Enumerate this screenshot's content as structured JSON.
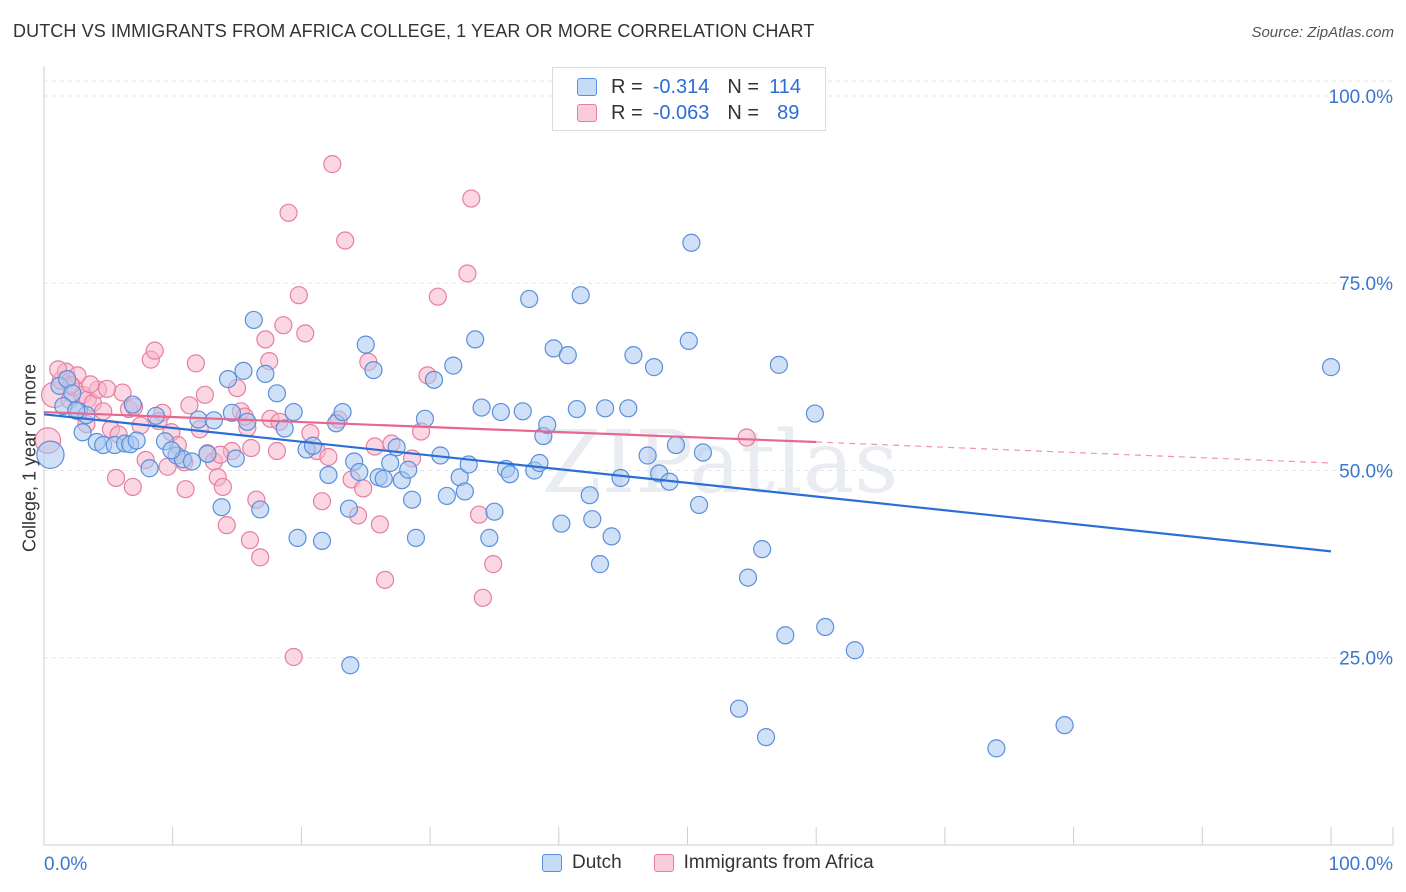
{
  "title": "DUTCH VS IMMIGRANTS FROM AFRICA COLLEGE, 1 YEAR OR MORE CORRELATION CHART",
  "source": "Source: ZipAtlas.com",
  "watermark": "ZIPatlas",
  "legend_top": [
    {
      "r_label": "R =",
      "r_value": "-0.314",
      "n_label": "N =",
      "n_value": "114"
    },
    {
      "r_label": "R =",
      "r_value": "-0.063",
      "n_label": "N =",
      "n_value": "89"
    }
  ],
  "legend_bottom": [
    "Dutch",
    "Immigrants from Africa"
  ],
  "colors": {
    "dutch_fill": "#a9c8f0",
    "dutch_stroke": "#5a8fdc",
    "dutch_line": "#2a6fd6",
    "africa_fill": "#f5b6cb",
    "africa_stroke": "#e77fa1",
    "africa_line": "#e8678f",
    "tick_label": "#3b76d0",
    "grid": "#e6e6e6"
  },
  "chart_data": {
    "type": "scatter",
    "title": "DUTCH VS IMMIGRANTS FROM AFRICA COLLEGE, 1 YEAR OR MORE CORRELATION CHART",
    "xlabel": "",
    "ylabel": "College, 1 year or more",
    "xlim": [
      0,
      100
    ],
    "ylim": [
      0,
      104
    ],
    "x_tick_labels": [
      "0.0%",
      "100.0%"
    ],
    "y_ticks": [
      25,
      50,
      75,
      100
    ],
    "y_tick_labels": [
      "25.0%",
      "50.0%",
      "75.0%",
      "100.0%"
    ],
    "grid": true,
    "legend_position": "top-center",
    "series": [
      {
        "name": "Dutch",
        "r": -0.314,
        "n": 114,
        "trend": {
          "x": [
            0,
            100
          ],
          "y": [
            57.5,
            39.2
          ],
          "dashed_from": null
        },
        "points": [
          [
            0.5,
            52.1,
            1.6
          ],
          [
            1.2,
            61.3,
            1
          ],
          [
            1.8,
            62.2,
            1
          ],
          [
            2.2,
            60.3,
            1
          ],
          [
            2.7,
            57.9,
            1
          ],
          [
            3.3,
            57.4,
            1
          ],
          [
            4.1,
            53.8,
            1
          ],
          [
            4.6,
            53.4,
            1
          ],
          [
            5.5,
            53.4,
            1
          ],
          [
            6.3,
            53.6,
            1
          ],
          [
            6.7,
            53.5,
            1
          ],
          [
            7.2,
            54.0,
            1
          ],
          [
            8.2,
            50.3,
            1
          ],
          [
            8.7,
            57.3,
            1
          ],
          [
            9.4,
            53.9,
            1
          ],
          [
            10.3,
            52.0,
            1
          ],
          [
            10.8,
            51.5,
            1
          ],
          [
            11.5,
            51.2,
            1
          ],
          [
            12.0,
            56.8,
            1
          ],
          [
            12.7,
            52.2,
            1
          ],
          [
            13.2,
            56.7,
            1
          ],
          [
            13.8,
            45.1,
            1
          ],
          [
            14.3,
            62.2,
            1
          ],
          [
            14.9,
            51.6,
            1
          ],
          [
            15.5,
            63.3,
            1
          ],
          [
            15.8,
            56.5,
            1
          ],
          [
            16.3,
            70.1,
            1
          ],
          [
            16.8,
            44.8,
            1
          ],
          [
            17.2,
            62.9,
            1
          ],
          [
            18.1,
            60.3,
            1
          ],
          [
            18.7,
            55.6,
            1
          ],
          [
            19.4,
            57.8,
            1
          ],
          [
            19.7,
            41.0,
            1
          ],
          [
            20.4,
            52.8,
            1
          ],
          [
            20.9,
            53.3,
            1
          ],
          [
            21.6,
            40.6,
            1
          ],
          [
            22.1,
            49.4,
            1
          ],
          [
            22.7,
            56.3,
            1
          ],
          [
            23.2,
            57.8,
            1
          ],
          [
            23.7,
            44.9,
            1
          ],
          [
            24.1,
            51.2,
            1
          ],
          [
            24.5,
            49.8,
            1
          ],
          [
            25.0,
            66.8,
            1
          ],
          [
            25.6,
            63.4,
            1
          ],
          [
            26.0,
            49.1,
            1
          ],
          [
            26.4,
            48.9,
            1
          ],
          [
            26.9,
            51.0,
            1
          ],
          [
            27.4,
            53.1,
            1
          ],
          [
            27.8,
            48.7,
            1
          ],
          [
            28.3,
            50.1,
            1
          ],
          [
            28.6,
            46.1,
            1
          ],
          [
            28.9,
            41.0,
            1
          ],
          [
            29.6,
            56.9,
            1
          ],
          [
            30.3,
            62.1,
            1
          ],
          [
            30.8,
            52.0,
            1
          ],
          [
            31.3,
            46.6,
            1
          ],
          [
            31.8,
            64.0,
            1
          ],
          [
            32.3,
            49.1,
            1
          ],
          [
            32.7,
            47.2,
            1
          ],
          [
            33.0,
            50.8,
            1
          ],
          [
            33.5,
            67.5,
            1
          ],
          [
            34.0,
            58.4,
            1
          ],
          [
            34.6,
            41.0,
            1
          ],
          [
            35.0,
            44.5,
            1
          ],
          [
            35.5,
            57.8,
            1
          ],
          [
            35.9,
            50.2,
            1
          ],
          [
            36.2,
            49.5,
            1
          ],
          [
            37.2,
            57.9,
            1
          ],
          [
            37.7,
            72.9,
            1
          ],
          [
            38.1,
            50.0,
            1
          ],
          [
            38.5,
            51.0,
            1
          ],
          [
            38.8,
            54.6,
            1
          ],
          [
            39.1,
            56.1,
            1
          ],
          [
            39.6,
            66.3,
            1
          ],
          [
            40.2,
            42.9,
            1
          ],
          [
            40.7,
            65.4,
            1
          ],
          [
            41.4,
            58.2,
            1
          ],
          [
            41.7,
            73.4,
            1
          ],
          [
            42.4,
            46.7,
            1
          ],
          [
            42.6,
            43.5,
            1
          ],
          [
            43.2,
            37.5,
            1
          ],
          [
            43.6,
            58.3,
            1
          ],
          [
            44.1,
            41.2,
            1
          ],
          [
            44.8,
            49.0,
            1
          ],
          [
            45.4,
            58.3,
            1
          ],
          [
            45.8,
            65.4,
            1
          ],
          [
            46.9,
            52.0,
            1
          ],
          [
            47.4,
            63.8,
            1
          ],
          [
            47.8,
            49.6,
            1
          ],
          [
            48.6,
            48.5,
            1
          ],
          [
            49.1,
            53.4,
            1
          ],
          [
            50.1,
            67.3,
            1
          ],
          [
            50.3,
            80.4,
            1
          ],
          [
            50.9,
            45.4,
            1
          ],
          [
            51.2,
            52.4,
            1
          ],
          [
            54.7,
            35.7,
            1
          ],
          [
            55.8,
            39.5,
            1
          ],
          [
            57.1,
            64.1,
            1
          ],
          [
            57.6,
            28.0,
            1
          ],
          [
            59.9,
            57.6,
            1
          ],
          [
            60.7,
            29.1,
            1
          ],
          [
            63.0,
            26.0,
            1
          ],
          [
            54.0,
            18.2,
            1
          ],
          [
            56.1,
            14.4,
            1
          ],
          [
            74.0,
            12.9,
            1
          ],
          [
            79.3,
            16.0,
            1
          ],
          [
            23.8,
            24.0,
            1
          ],
          [
            100.0,
            63.8,
            1
          ],
          [
            1.5,
            58.6,
            1
          ],
          [
            2.5,
            58.0,
            1
          ],
          [
            3.0,
            55.1,
            1
          ],
          [
            6.9,
            58.8,
            1
          ],
          [
            9.9,
            52.7,
            1
          ],
          [
            14.6,
            57.7,
            1
          ]
        ]
      },
      {
        "name": "Immigrants from Africa",
        "r": -0.063,
        "n": 89,
        "trend": {
          "x": [
            0,
            60,
            100
          ],
          "y": [
            57.8,
            53.8,
            51.0
          ],
          "dashed_from": 60
        },
        "points": [
          [
            0.3,
            54.0,
            1.5
          ],
          [
            0.8,
            60.1,
            1.5
          ],
          [
            1.3,
            62.0,
            1
          ],
          [
            1.7,
            63.2,
            1
          ],
          [
            2.0,
            59.4,
            1
          ],
          [
            2.3,
            61.1,
            1
          ],
          [
            2.6,
            62.7,
            1
          ],
          [
            3.0,
            60.1,
            1
          ],
          [
            3.4,
            59.5,
            1
          ],
          [
            3.8,
            59.0,
            1
          ],
          [
            4.2,
            60.8,
            1
          ],
          [
            4.6,
            57.9,
            1
          ],
          [
            5.2,
            55.5,
            1
          ],
          [
            5.6,
            49.0,
            1
          ],
          [
            6.1,
            60.4,
            1
          ],
          [
            6.6,
            58.2,
            1
          ],
          [
            6.9,
            47.8,
            1
          ],
          [
            7.5,
            56.0,
            1
          ],
          [
            7.9,
            51.4,
            1
          ],
          [
            8.3,
            64.8,
            1
          ],
          [
            8.6,
            66.0,
            1
          ],
          [
            9.2,
            57.7,
            1
          ],
          [
            9.6,
            50.5,
            1
          ],
          [
            9.9,
            55.1,
            1
          ],
          [
            10.4,
            53.4,
            1
          ],
          [
            10.9,
            51.1,
            1
          ],
          [
            11.3,
            58.7,
            1
          ],
          [
            11.8,
            64.3,
            1
          ],
          [
            12.1,
            55.5,
            1
          ],
          [
            12.7,
            52.3,
            1
          ],
          [
            13.2,
            51.2,
            1
          ],
          [
            13.5,
            49.1,
            1
          ],
          [
            13.9,
            47.8,
            1
          ],
          [
            14.2,
            42.7,
            1
          ],
          [
            14.6,
            52.6,
            1
          ],
          [
            15.0,
            61.0,
            1
          ],
          [
            15.3,
            57.9,
            1
          ],
          [
            15.8,
            55.7,
            1
          ],
          [
            16.1,
            53.0,
            1
          ],
          [
            16.5,
            46.1,
            1
          ],
          [
            16.8,
            38.4,
            1
          ],
          [
            17.2,
            67.5,
            1
          ],
          [
            17.6,
            56.9,
            1
          ],
          [
            18.1,
            52.6,
            1
          ],
          [
            18.6,
            69.4,
            1
          ],
          [
            19.0,
            84.4,
            1
          ],
          [
            19.4,
            25.1,
            1
          ],
          [
            19.8,
            73.4,
            1
          ],
          [
            20.3,
            68.3,
            1
          ],
          [
            20.7,
            55.0,
            1
          ],
          [
            21.2,
            52.6,
            1
          ],
          [
            21.6,
            45.9,
            1
          ],
          [
            22.1,
            51.8,
            1
          ],
          [
            22.4,
            90.9,
            1
          ],
          [
            22.9,
            56.8,
            1
          ],
          [
            23.4,
            80.7,
            1
          ],
          [
            23.9,
            48.8,
            1
          ],
          [
            24.4,
            44.0,
            1
          ],
          [
            24.8,
            47.6,
            1
          ],
          [
            25.2,
            64.5,
            1
          ],
          [
            25.7,
            53.2,
            1
          ],
          [
            26.1,
            42.8,
            1
          ],
          [
            26.5,
            35.4,
            1
          ],
          [
            27.0,
            53.6,
            1
          ],
          [
            28.6,
            51.6,
            1
          ],
          [
            29.3,
            55.2,
            1
          ],
          [
            29.8,
            62.7,
            1
          ],
          [
            30.6,
            73.2,
            1
          ],
          [
            32.9,
            76.3,
            1
          ],
          [
            33.2,
            86.3,
            1
          ],
          [
            33.8,
            44.1,
            1
          ],
          [
            34.1,
            33.0,
            1
          ],
          [
            34.9,
            37.5,
            1
          ],
          [
            3.3,
            56.2,
            1
          ],
          [
            7.0,
            58.5,
            1
          ],
          [
            12.5,
            60.1,
            1
          ],
          [
            15.6,
            57.2,
            1
          ],
          [
            17.5,
            64.6,
            1
          ],
          [
            5.8,
            54.8,
            1
          ],
          [
            2.1,
            61.4,
            1
          ],
          [
            8.9,
            56.6,
            1
          ],
          [
            11.0,
            47.5,
            1
          ],
          [
            13.7,
            52.1,
            1
          ],
          [
            18.3,
            56.5,
            1
          ],
          [
            4.9,
            60.9,
            1
          ],
          [
            1.1,
            63.5,
            1
          ],
          [
            54.6,
            54.4,
            1
          ],
          [
            3.6,
            61.5,
            1
          ],
          [
            16.0,
            40.7,
            1
          ]
        ]
      }
    ]
  }
}
